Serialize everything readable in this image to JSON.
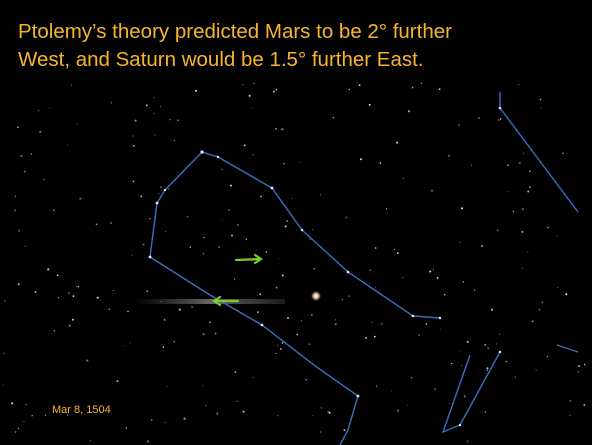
{
  "title_lines": [
    "Ptolemy’s theory predicted Mars to be 2° further",
    "West, and Saturn would be 1.5° further East."
  ],
  "date": "Mar 8, 1504"
}
